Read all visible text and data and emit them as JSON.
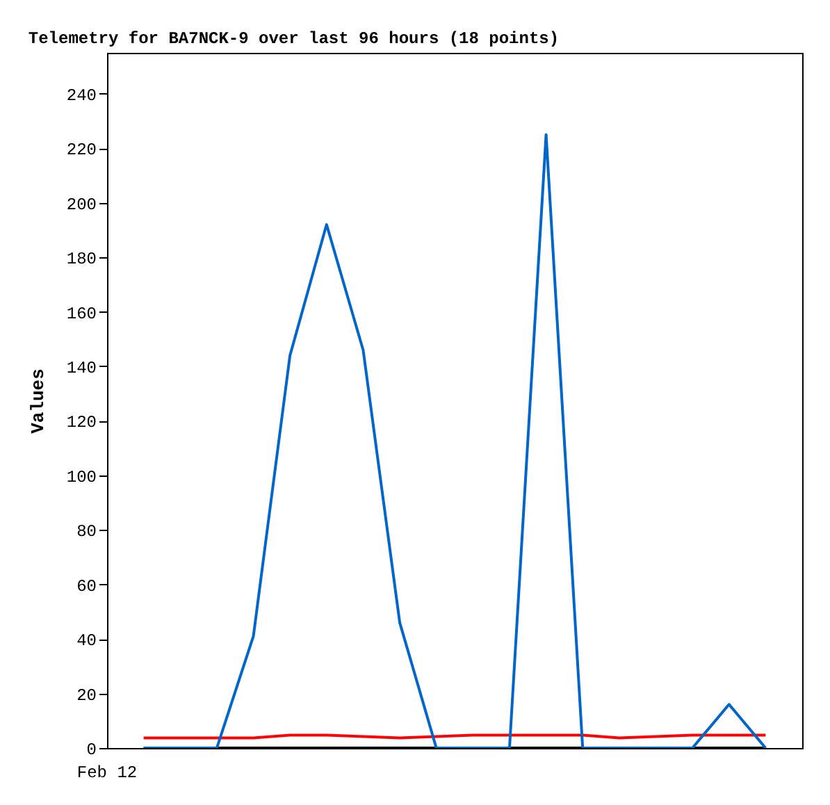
{
  "chart_data": {
    "type": "line",
    "title": "Telemetry for BA7NCK-9 over last 96 hours (18 points)",
    "ylabel": "Values",
    "categories": [
      null,
      null,
      null,
      null,
      null,
      null,
      null,
      null,
      null,
      null,
      null,
      null,
      null,
      null,
      null,
      null,
      null,
      null
    ],
    "annotations": [
      "Feb 12"
    ],
    "ylim": [
      0,
      255
    ],
    "yticks": [
      0,
      20,
      40,
      60,
      80,
      100,
      120,
      140,
      160,
      180,
      200,
      220,
      240
    ],
    "series": [
      {
        "color": "#000000",
        "values": [
          0,
          0,
          0,
          0,
          0,
          0,
          0,
          0,
          0,
          0,
          0,
          0,
          0,
          0,
          0,
          0,
          0,
          0
        ]
      },
      {
        "color": "#ff0000",
        "values": [
          3.7,
          3.7,
          3.7,
          3.7,
          4.7,
          4.7,
          4.2,
          3.7,
          4.2,
          4.7,
          4.7,
          4.7,
          4.7,
          3.7,
          4.2,
          4.7,
          4.7,
          4.7
        ]
      },
      {
        "color": "#0066cc",
        "values": [
          0,
          0,
          0,
          41,
          144,
          192,
          146,
          46,
          0,
          0,
          0,
          225,
          0,
          0,
          0,
          0,
          16,
          0
        ]
      }
    ],
    "line_style": "solid"
  }
}
